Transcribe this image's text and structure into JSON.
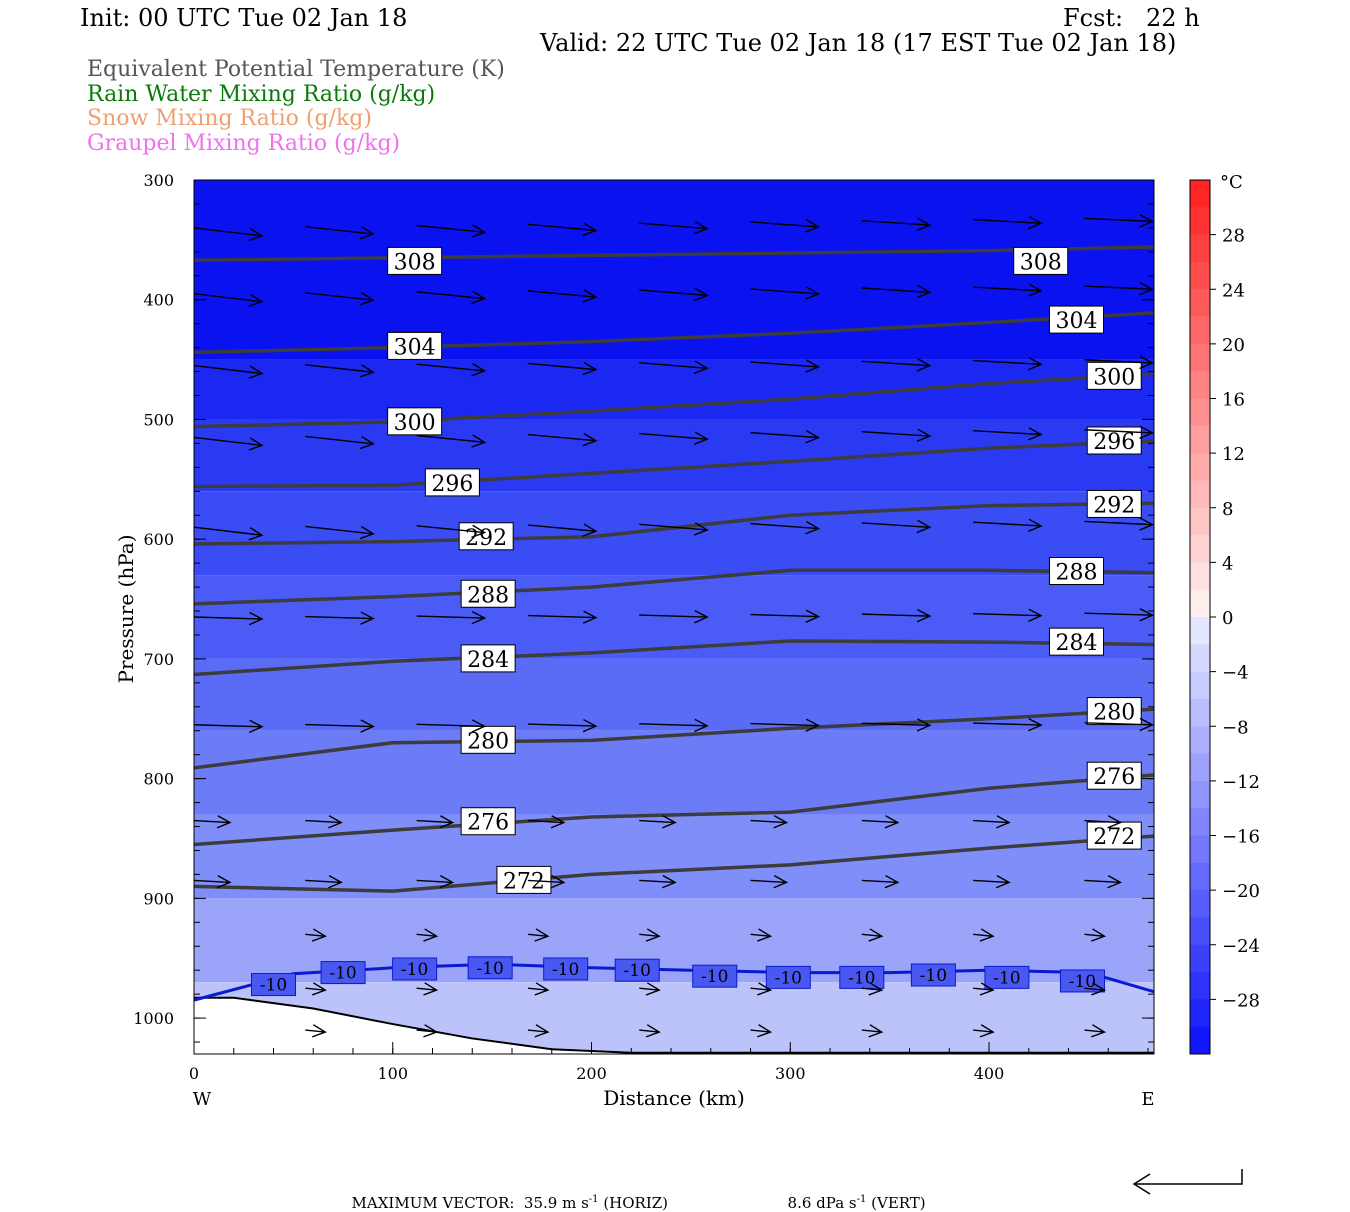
{
  "header": {
    "init": "Init: 00 UTC Tue 02 Jan 18",
    "fcst": "Fcst:   22 h",
    "valid": "Valid: 22 UTC Tue 02 Jan 18 (17 EST Tue 02 Jan 18)"
  },
  "legend": [
    {
      "label": "Equivalent Potential Temperature (K)",
      "color": "#555555"
    },
    {
      "label": "Rain Water Mixing Ratio (g/kg)",
      "color": "#0a7a0a"
    },
    {
      "label": "Snow Mixing Ratio (g/kg)",
      "color": "#f0a070"
    },
    {
      "label": "Graupel Mixing Ratio (g/kg)",
      "color": "#f070f0"
    }
  ],
  "chart_data": {
    "type": "contour",
    "xlabel": "Distance (km)",
    "ylabel": "Pressure (hPa)",
    "xlim": [
      0,
      483
    ],
    "ylim": [
      1030,
      300
    ],
    "y_scale": "linear",
    "x_ticks": [
      0,
      100,
      200,
      300,
      400
    ],
    "y_ticks": [
      300,
      400,
      500,
      600,
      700,
      800,
      900,
      1000
    ],
    "x_end_labels": {
      "left": "W",
      "right": "E"
    },
    "theta_e_contours": [
      {
        "value": 308,
        "points": [
          [
            0,
            367
          ],
          [
            100,
            365
          ],
          [
            200,
            363
          ],
          [
            300,
            361
          ],
          [
            400,
            359
          ],
          [
            483,
            356
          ]
        ],
        "label_positions": [
          [
            111,
            368
          ],
          [
            426,
            368
          ]
        ]
      },
      {
        "value": 304,
        "points": [
          [
            0,
            444
          ],
          [
            100,
            440
          ],
          [
            200,
            435
          ],
          [
            300,
            428
          ],
          [
            400,
            419
          ],
          [
            483,
            411
          ]
        ],
        "label_positions": [
          [
            111,
            439
          ],
          [
            444,
            417
          ]
        ]
      },
      {
        "value": 300,
        "points": [
          [
            0,
            506
          ],
          [
            100,
            502
          ],
          [
            200,
            493
          ],
          [
            300,
            483
          ],
          [
            400,
            470
          ],
          [
            483,
            462
          ]
        ],
        "label_positions": [
          [
            111,
            502
          ],
          [
            463,
            464
          ]
        ]
      },
      {
        "value": 296,
        "points": [
          [
            0,
            556
          ],
          [
            100,
            555
          ],
          [
            200,
            545
          ],
          [
            300,
            535
          ],
          [
            400,
            524
          ],
          [
            483,
            518
          ]
        ],
        "label_positions": [
          [
            130,
            553
          ],
          [
            463,
            518
          ]
        ]
      },
      {
        "value": 292,
        "points": [
          [
            0,
            604
          ],
          [
            100,
            602
          ],
          [
            200,
            598
          ],
          [
            300,
            580
          ],
          [
            400,
            572
          ],
          [
            483,
            570
          ]
        ],
        "label_positions": [
          [
            147,
            598
          ],
          [
            463,
            571
          ]
        ]
      },
      {
        "value": 288,
        "points": [
          [
            0,
            654
          ],
          [
            100,
            648
          ],
          [
            200,
            640
          ],
          [
            300,
            626
          ],
          [
            400,
            626
          ],
          [
            483,
            628
          ]
        ],
        "label_positions": [
          [
            148,
            646
          ],
          [
            444,
            627
          ]
        ]
      },
      {
        "value": 284,
        "points": [
          [
            0,
            713
          ],
          [
            100,
            702
          ],
          [
            200,
            695
          ],
          [
            300,
            685
          ],
          [
            400,
            686
          ],
          [
            483,
            688
          ]
        ],
        "label_positions": [
          [
            148,
            700
          ],
          [
            444,
            686
          ]
        ]
      },
      {
        "value": 280,
        "points": [
          [
            0,
            791
          ],
          [
            100,
            770
          ],
          [
            200,
            768
          ],
          [
            300,
            758
          ],
          [
            400,
            750
          ],
          [
            483,
            742
          ]
        ],
        "label_positions": [
          [
            148,
            768
          ],
          [
            463,
            744
          ]
        ]
      },
      {
        "value": 276,
        "points": [
          [
            0,
            855
          ],
          [
            100,
            843
          ],
          [
            200,
            832
          ],
          [
            300,
            828
          ],
          [
            400,
            808
          ],
          [
            483,
            797
          ]
        ],
        "label_positions": [
          [
            148,
            836
          ],
          [
            463,
            798
          ]
        ]
      },
      {
        "value": 272,
        "points": [
          [
            0,
            890
          ],
          [
            100,
            894
          ],
          [
            200,
            880
          ],
          [
            300,
            872
          ],
          [
            400,
            858
          ],
          [
            483,
            848
          ]
        ],
        "label_positions": [
          [
            166,
            885
          ],
          [
            463,
            848
          ]
        ]
      }
    ],
    "temperature_contours": [
      {
        "value": -10,
        "points": [
          [
            0,
            985
          ],
          [
            50,
            963
          ],
          [
            100,
            958
          ],
          [
            150,
            955
          ],
          [
            200,
            958
          ],
          [
            250,
            960
          ],
          [
            300,
            962
          ],
          [
            350,
            962
          ],
          [
            400,
            960
          ],
          [
            450,
            962
          ],
          [
            483,
            978
          ]
        ],
        "labels": [
          "-10",
          "-10",
          "-10",
          "-10",
          "-10",
          "-10",
          "-10",
          "-10",
          "-10",
          "-10",
          "-10",
          "-10"
        ],
        "label_positions": [
          [
            40,
            972
          ],
          [
            75,
            962
          ],
          [
            111,
            959
          ],
          [
            149,
            958
          ],
          [
            187,
            959
          ],
          [
            223,
            960
          ],
          [
            262,
            965
          ],
          [
            299,
            966
          ],
          [
            336,
            966
          ],
          [
            372,
            964
          ],
          [
            409,
            966
          ],
          [
            447,
            969
          ]
        ]
      }
    ],
    "terrain": {
      "points": [
        [
          0,
          983
        ],
        [
          20,
          983
        ],
        [
          60,
          992
        ],
        [
          100,
          1005
        ],
        [
          140,
          1017
        ],
        [
          180,
          1026
        ],
        [
          220,
          1029
        ],
        [
          483,
          1029
        ]
      ]
    },
    "color_scale": {
      "unit": "°C",
      "ticks": [
        28,
        24,
        20,
        16,
        12,
        8,
        4,
        0,
        -4,
        -8,
        -12,
        -16,
        -20,
        -24,
        -28
      ]
    },
    "wind_vectors_note": "",
    "max_vector": {
      "horiz": "MAXIMUM VECTOR:  35.9 m s",
      "horiz_unit": "(HORIZ)",
      "vert": "8.6 dPa s",
      "vert_unit": "(VERT)",
      "exponent": "-1"
    }
  }
}
